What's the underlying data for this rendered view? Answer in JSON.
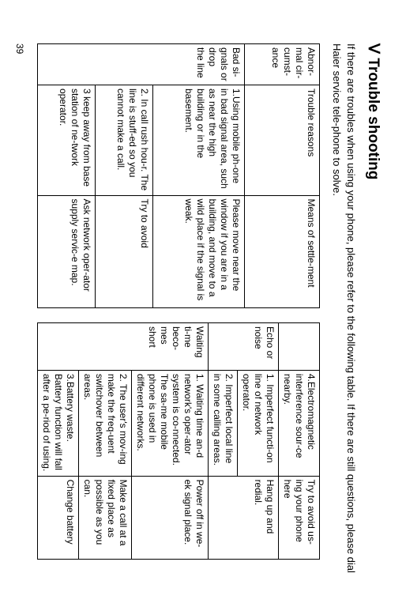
{
  "title_roman": "Ⅴ",
  "title_text": "Trouble shooting",
  "intro": "If there are troubles when using your phone, please refer to the following table. If there are still questions, please dial Haier service tele-phone to solve.",
  "page_number": "39",
  "table1": {
    "header": {
      "c1": "Abnor-mal cir-cumst-ance",
      "c2": "Trouble reasons",
      "c3": "Means of settle-ment"
    },
    "rows": [
      {
        "c1": "Bad si-gnals or drop the line",
        "c2": "1.Using mobile ph-one in bad signal area, such as near the high building or in the basement.",
        "c3": "Please move near the window if you are in a building, and move to a wild place if the signal is weak."
      },
      {
        "c2": "2. In call rush hou-r. The line is stuff-ed so you cannot make a call.",
        "c3": "Try to avoid"
      },
      {
        "c2": "3 keep away from base station of ne-twork operator.",
        "c3": "Ask network oper-ator supply servic-e map."
      }
    ]
  },
  "table2": {
    "rows": [
      {
        "c2": "4.Electromagnetic interference sour-ce nearby.",
        "c3": "Try to avoid us-ing your phone here"
      },
      {
        "c1": "Echo or noise",
        "c2a": "1. Imperfect functi-on line of network operator.",
        "c2b": "2. Imperfect local line in some calling areas.",
        "c3": "Hang up and redial."
      },
      {
        "c1": "Waiting ti-me beco-mes short",
        "c2a": "1. Waiting time an-d network's oper-ator system is co-nnected. The sa-me mobile phone is used in different networks.",
        "c3a": "Power off in we-ek signal place.",
        "c2b": "2. The user's mov-ing make the freq-uent switchover between areas.",
        "c3b": "Make a call at a fixed place as possible as you can.",
        "c2c": "3.Battery waste. Battery function will fall after a pe-riod of using.",
        "c3c": "Change battery"
      }
    ]
  }
}
